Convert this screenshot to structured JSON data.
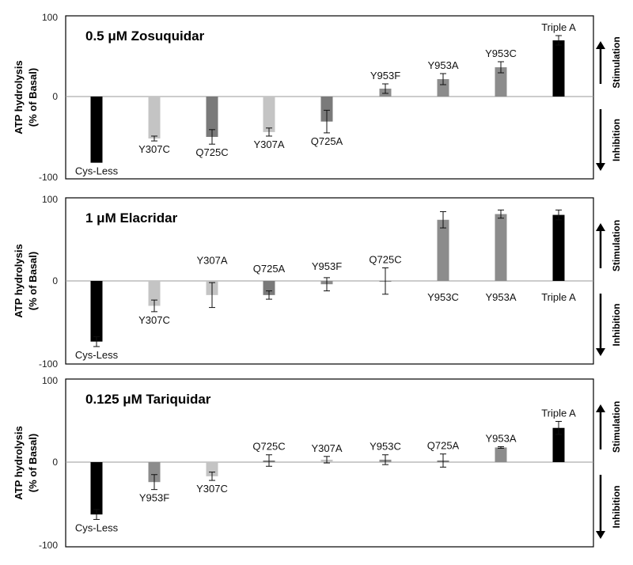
{
  "ylabel_line1": "ATP hydrolysis",
  "ylabel_line2": "(% of Basal)",
  "side": {
    "stimulation": "Stimulation",
    "inhibition": "Inhibition"
  },
  "chart_data": [
    {
      "type": "bar",
      "title": "0.5 μM Zosuquidar",
      "ylim": [
        -100,
        100
      ],
      "yticks": [
        "100",
        "0",
        "-100"
      ],
      "grid": false,
      "categories": [
        "Cys-Less",
        "Y307C",
        "Q725C",
        "Y307A",
        "Q725A",
        "Y953F",
        "Y953A",
        "Y953C",
        "Triple A"
      ],
      "values": [
        -82,
        -52,
        -50,
        -44,
        -31,
        10,
        22,
        37,
        71
      ],
      "errors": [
        0,
        3,
        9,
        5,
        14,
        6,
        7,
        7,
        6
      ],
      "colors": [
        "#000000",
        "#c4c4c4",
        "#7a7a7a",
        "#c4c4c4",
        "#7a7a7a",
        "#8c8c8c",
        "#8c8c8c",
        "#8c8c8c",
        "#000000"
      ]
    },
    {
      "type": "bar",
      "title": "1 μM Elacridar",
      "ylim": [
        -100,
        100
      ],
      "yticks": [
        "100",
        "0",
        "-100"
      ],
      "grid": false,
      "categories": [
        "Cys-Less",
        "Y307C",
        "Y307A",
        "Q725A",
        "Y953F",
        "Q725C",
        "Y953C",
        "Y953A",
        "Triple A"
      ],
      "values": [
        -73,
        -30,
        -17,
        -17,
        -4,
        0,
        75,
        82,
        81
      ],
      "errors": [
        6,
        7,
        15,
        5,
        8,
        16,
        10,
        5,
        6
      ],
      "colors": [
        "#000000",
        "#c4c4c4",
        "#c4c4c4",
        "#7a7a7a",
        "#8c8c8c",
        "#7a7a7a",
        "#8c8c8c",
        "#8c8c8c",
        "#000000"
      ]
    },
    {
      "type": "bar",
      "title": "0.125 μM Tariquidar",
      "ylim": [
        -100,
        100
      ],
      "yticks": [
        "100",
        "0",
        "-100"
      ],
      "grid": false,
      "categories": [
        "Cys-Less",
        "Y953F",
        "Y307C",
        "Q725C",
        "Y307A",
        "Y953C",
        "Q725A",
        "Y953A",
        "Triple A"
      ],
      "values": [
        -63,
        -24,
        -17,
        2,
        3,
        3,
        2,
        18,
        42
      ],
      "errors": [
        6,
        9,
        5,
        7,
        4,
        6,
        8,
        1,
        8
      ],
      "colors": [
        "#000000",
        "#8c8c8c",
        "#c4c4c4",
        "#7a7a7a",
        "#c4c4c4",
        "#8c8c8c",
        "#7a7a7a",
        "#8c8c8c",
        "#000000"
      ]
    }
  ]
}
